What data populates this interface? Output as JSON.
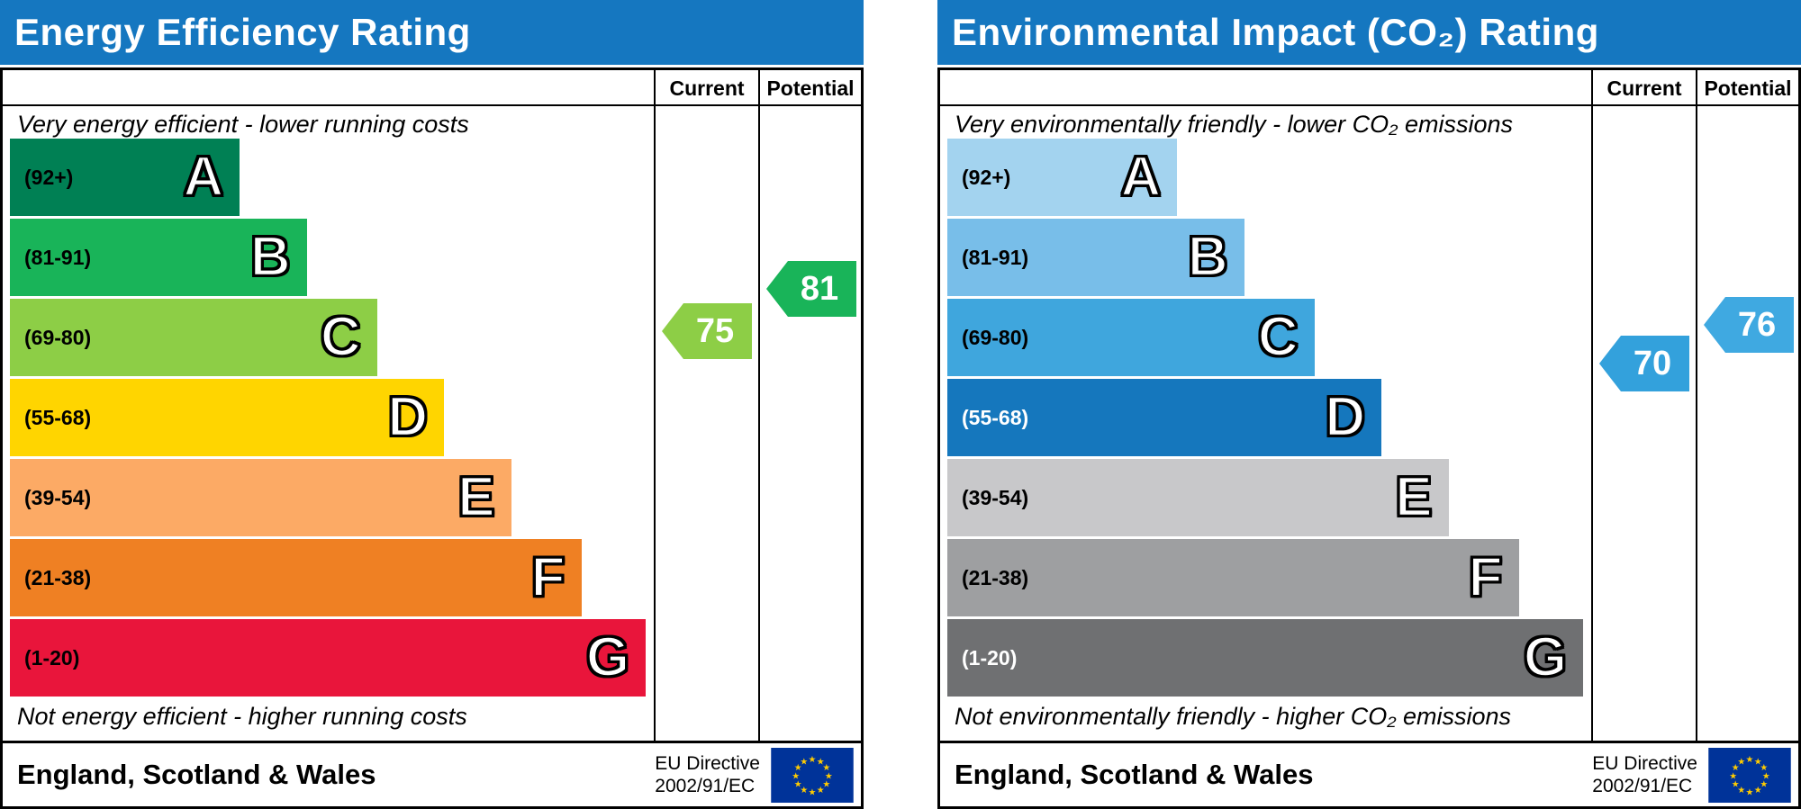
{
  "chart_data": [
    {
      "type": "banded_rating_bar",
      "title": "Energy Efficiency Rating",
      "header_bg": "#1577c0",
      "columns": {
        "current": "Current",
        "potential": "Potential"
      },
      "top_caption": "Very energy efficient - lower running costs",
      "bottom_caption": "Not energy efficient - higher running costs",
      "bands": [
        {
          "label": "(92+)",
          "lo": 92,
          "hi": 100,
          "letter": "A",
          "color": "#008054",
          "label_color": "#000000",
          "width_pct": 36
        },
        {
          "label": "(81-91)",
          "lo": 81,
          "hi": 91,
          "letter": "B",
          "color": "#19b459",
          "label_color": "#000000",
          "width_pct": 46.5
        },
        {
          "label": "(69-80)",
          "lo": 69,
          "hi": 80,
          "letter": "C",
          "color": "#8dce46",
          "label_color": "#000000",
          "width_pct": 57.5
        },
        {
          "label": "(55-68)",
          "lo": 55,
          "hi": 68,
          "letter": "D",
          "color": "#ffd500",
          "label_color": "#000000",
          "width_pct": 68
        },
        {
          "label": "(39-54)",
          "lo": 39,
          "hi": 54,
          "letter": "E",
          "color": "#fcaa65",
          "label_color": "#000000",
          "width_pct": 78.5
        },
        {
          "label": "(21-38)",
          "lo": 21,
          "hi": 38,
          "letter": "F",
          "color": "#ef8023",
          "label_color": "#000000",
          "width_pct": 89.5
        },
        {
          "label": "(1-20)",
          "lo": 1,
          "hi": 20,
          "letter": "G",
          "color": "#e9153b",
          "label_color": "#000000",
          "width_pct": 99.6
        }
      ],
      "current": {
        "value": 75,
        "arrow_color": "#8dce46"
      },
      "potential": {
        "value": 81,
        "arrow_color": "#19b459"
      },
      "footer": {
        "region": "England, Scotland & Wales",
        "directive_line1": "EU Directive",
        "directive_line2": "2002/91/EC"
      }
    },
    {
      "type": "banded_rating_bar",
      "title": "Environmental Impact (CO₂) Rating",
      "header_bg": "#1577c0",
      "columns": {
        "current": "Current",
        "potential": "Potential"
      },
      "top_caption": "Very environmentally friendly - lower CO₂ emissions",
      "bottom_caption": "Not environmentally friendly - higher CO₂ emissions",
      "bands": [
        {
          "label": "(92+)",
          "lo": 92,
          "hi": 100,
          "letter": "A",
          "color": "#a3d3ef",
          "label_color": "#000000",
          "width_pct": 36
        },
        {
          "label": "(81-91)",
          "lo": 81,
          "hi": 91,
          "letter": "B",
          "color": "#78bee9",
          "label_color": "#000000",
          "width_pct": 46.5
        },
        {
          "label": "(69-80)",
          "lo": 69,
          "hi": 80,
          "letter": "C",
          "color": "#3fa6dd",
          "label_color": "#000000",
          "width_pct": 57.5
        },
        {
          "label": "(55-68)",
          "lo": 55,
          "hi": 68,
          "letter": "D",
          "color": "#1577bd",
          "label_color": "#ffffff",
          "width_pct": 68
        },
        {
          "label": "(39-54)",
          "lo": 39,
          "hi": 54,
          "letter": "E",
          "color": "#c8c8ca",
          "label_color": "#000000",
          "width_pct": 78.5
        },
        {
          "label": "(21-38)",
          "lo": 21,
          "hi": 38,
          "letter": "F",
          "color": "#9e9fa1",
          "label_color": "#000000",
          "width_pct": 89.5
        },
        {
          "label": "(1-20)",
          "lo": 1,
          "hi": 20,
          "letter": "G",
          "color": "#6f7072",
          "label_color": "#ffffff",
          "width_pct": 99.6
        }
      ],
      "current": {
        "value": 70,
        "arrow_color": "#33a1dc"
      },
      "potential": {
        "value": 76,
        "arrow_color": "#3fa9e1"
      },
      "footer": {
        "region": "England, Scotland & Wales",
        "directive_line1": "EU Directive",
        "directive_line2": "2002/91/EC"
      }
    }
  ],
  "flag": {
    "background": "#003399",
    "star_color": "#ffcc00"
  }
}
